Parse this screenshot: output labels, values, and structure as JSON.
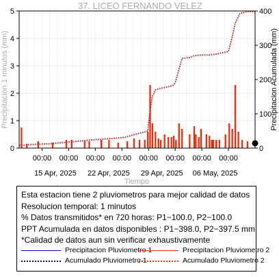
{
  "chart_data": {
    "type": "bar",
    "title": "37. LICEO FERNANDO VELEZ",
    "xlabel": "Tiempo",
    "ylabel_left": "Precipitacion 1 minutos (mm)",
    "ylabel_right": "Precipitacion Acumulada (mm)",
    "ylim_left": [
      0,
      5
    ],
    "ylim_right": [
      0,
      400
    ],
    "y_ticks_left": [
      "0",
      "1",
      "2",
      "3",
      "4",
      "5"
    ],
    "y_ticks_right": [
      "0",
      "100",
      "200",
      "300",
      "400"
    ],
    "x_range_days": [
      0,
      31
    ],
    "x_time_labels": [
      "00:00",
      "00:00",
      "00:00",
      "00:00",
      "00:00",
      "00:00",
      "00:00",
      "00:00"
    ],
    "x_date_labels": [
      "15 Apr, 2025",
      "22 Apr, 2025",
      "29 Apr, 2025",
      "06 May, 2025"
    ],
    "grid": true,
    "series": [
      {
        "name": "Precipitacion Pluviometro 1",
        "style": "bars",
        "color": "#0000cc",
        "x_days": [
          6.9,
          10.8,
          14.2,
          20.6,
          25.5,
          25.9
        ],
        "values": [
          0.2,
          0.3,
          0.2,
          0.2,
          0.3,
          0.3
        ]
      },
      {
        "name": "Precipitacion Pluviometro 2",
        "style": "bars",
        "color": "#ff2200",
        "x_days": [
          0.3,
          1.0,
          2.5,
          4.4,
          6.2,
          6.9,
          8.6,
          9.2,
          10.8,
          11.8,
          13.0,
          14.2,
          15.1,
          15.8,
          16.5,
          16.9,
          17.2,
          17.5,
          17.9,
          18.3,
          18.6,
          19.1,
          19.6,
          20.0,
          20.3,
          20.6,
          21.0,
          21.4,
          22.4,
          23.0,
          23.2,
          23.6,
          23.9,
          24.6,
          25.0,
          25.3,
          25.5,
          25.9,
          26.3,
          27.1,
          27.6,
          28.0,
          28.4,
          28.8,
          29.3,
          30.0
        ],
        "values": [
          0.75,
          0.15,
          0.25,
          0.2,
          0.3,
          0.3,
          0.25,
          0.25,
          0.3,
          0.3,
          0.2,
          0.25,
          0.35,
          0.3,
          0.3,
          0.6,
          2.3,
          0.9,
          0.6,
          0.35,
          0.3,
          0.5,
          0.4,
          0.4,
          0.45,
          0.3,
          0.9,
          0.7,
          0.5,
          0.8,
          0.5,
          0.4,
          0.7,
          0.5,
          0.45,
          0.3,
          0.3,
          0.3,
          0.3,
          0.5,
          0.9,
          0.7,
          2.3,
          0.6,
          0.3,
          0.25
        ]
      },
      {
        "name": "Acumulado Pluviometro 1",
        "style": "dotted-line",
        "color": "#0000cc",
        "x_days": [
          0,
          2,
          4,
          6,
          8,
          10,
          12,
          14,
          15,
          16.9,
          17.2,
          17.5,
          17.9,
          18.5,
          19.5,
          20.2,
          20.5,
          21,
          21.4,
          22.5,
          23,
          24,
          25,
          26,
          27.5,
          28,
          28.4,
          29,
          30,
          31
        ],
        "values": [
          8,
          11,
          13,
          17,
          21,
          25,
          28,
          32,
          39,
          50,
          110,
          150,
          170,
          174,
          179,
          183,
          190,
          230,
          262,
          265,
          270,
          272,
          272,
          275,
          282,
          325,
          365,
          393,
          398,
          398
        ]
      },
      {
        "name": "Acumulado Pluviometro 2",
        "style": "dotted-line",
        "color": "#ff3300",
        "x_days": [
          0,
          2,
          4,
          6,
          8,
          10,
          12,
          14,
          15,
          16.9,
          17.2,
          17.5,
          17.9,
          18.5,
          19.5,
          20.2,
          20.5,
          21,
          21.4,
          22.5,
          23,
          24,
          25,
          26,
          27.5,
          28,
          28.4,
          29,
          30,
          31
        ],
        "values": [
          7,
          10,
          12,
          16,
          20,
          24,
          27,
          31,
          38,
          49,
          109,
          149,
          169,
          173,
          178,
          182,
          189,
          229,
          261,
          264,
          269,
          271,
          271,
          274,
          281,
          324,
          364,
          392,
          397.5,
          397.5
        ]
      }
    ]
  },
  "info_box": {
    "lines": [
      "Esta estacion tiene 2 pluviometros para mejor calidad de datos",
      "Resolucion temporal: 1 minutos",
      "% Datos transmitidos* en 720 horas: P1−100.0, P2−100.0",
      "PPT Acumulada en datos disponibles : P1−398.0, P2−397.5 mm",
      "*Calidad de datos aun sin verificar exhaustivamente"
    ],
    "legend": [
      "Precipitacion Pluviometro 1",
      "Precipitacion Pluviometro 2",
      "Acumulado Pluviometro 1",
      "Acumulado Pluviometro 2"
    ]
  }
}
